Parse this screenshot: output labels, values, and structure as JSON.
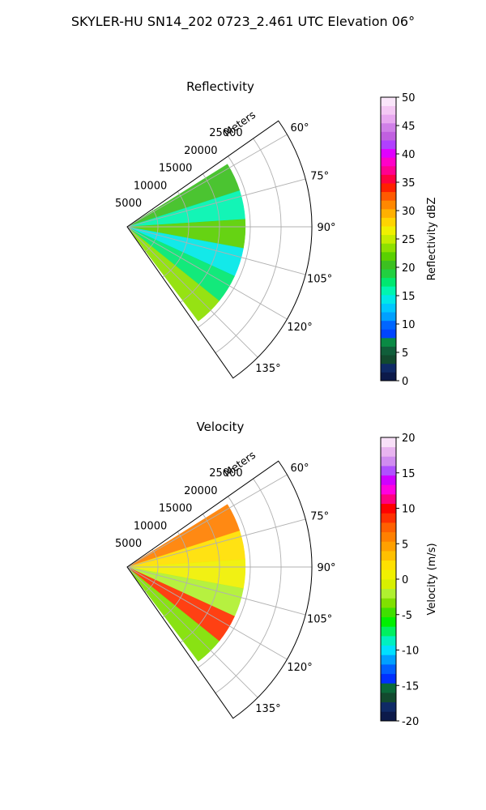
{
  "figure": {
    "title": "SKYLER-HU  SN14_202  0723_2.461 UTC Elevation 06°"
  },
  "chart_data": [
    {
      "type": "heatmap",
      "title": "Reflectivity",
      "radial_label": "Meters",
      "radial_ticks": [
        "5000",
        "10000",
        "15000",
        "20000",
        "25000"
      ],
      "radial_tick_values": [
        5000,
        10000,
        15000,
        20000,
        25000
      ],
      "angle_ticks": [
        "60°",
        "75°",
        "90°",
        "105°",
        "120°",
        "135°"
      ],
      "angle_tick_values": [
        60,
        75,
        90,
        105,
        120,
        135
      ],
      "theta_range_deg": [
        55,
        145
      ],
      "r_range_m": [
        0,
        30000
      ],
      "colorbar": {
        "label": "Reflectivity dBZ",
        "ticks": [
          "0",
          "5",
          "10",
          "15",
          "20",
          "25",
          "30",
          "35",
          "40",
          "45",
          "50"
        ],
        "range": [
          0,
          50
        ],
        "colormap": "NWSRef",
        "colors": [
          "#0c1a4a",
          "#0f2a66",
          "#124a2e",
          "#105e3a",
          "#0a8a44",
          "#0044ff",
          "#0066ff",
          "#00a0ff",
          "#00c8ff",
          "#00e8e8",
          "#00f5b0",
          "#00e870",
          "#22d040",
          "#3cc020",
          "#5ad000",
          "#8ee000",
          "#c6ec00",
          "#f0f000",
          "#ffd400",
          "#ffb000",
          "#ff8800",
          "#ff5a00",
          "#ff2000",
          "#ff0040",
          "#ff0090",
          "#ff00c8",
          "#e000ff",
          "#b040ff",
          "#c060e0",
          "#d080e8",
          "#e8a8f0",
          "#f4c8f4",
          "#fae6fa"
        ],
        "field_values": [
          20,
          16,
          22,
          14,
          18,
          24
        ]
      }
    },
    {
      "type": "heatmap",
      "title": "Velocity",
      "radial_label": "Meters",
      "radial_ticks": [
        "5000",
        "10000",
        "15000",
        "20000",
        "25000"
      ],
      "radial_tick_values": [
        5000,
        10000,
        15000,
        20000,
        25000
      ],
      "angle_ticks": [
        "60°",
        "75°",
        "90°",
        "105°",
        "120°",
        "135°"
      ],
      "angle_tick_values": [
        60,
        75,
        90,
        105,
        120,
        135
      ],
      "theta_range_deg": [
        55,
        145
      ],
      "r_range_m": [
        0,
        30000
      ],
      "colorbar": {
        "label": "Velocity (m/s)",
        "ticks": [
          "-20",
          "-15",
          "-10",
          "-5",
          "0",
          "5",
          "10",
          "15",
          "20"
        ],
        "range": [
          -20,
          20
        ],
        "colormap": "NWSVel",
        "colors": [
          "#0c1a4a",
          "#0f2a66",
          "#124a2e",
          "#0a6a3a",
          "#0030ff",
          "#0060ff",
          "#00a0ff",
          "#00e0ff",
          "#00f0c0",
          "#00f060",
          "#00f000",
          "#40e000",
          "#80e000",
          "#b0f030",
          "#d8f000",
          "#f0f000",
          "#ffe000",
          "#ffc000",
          "#ffa000",
          "#ff8000",
          "#ff6000",
          "#ff3000",
          "#ff0000",
          "#ff0080",
          "#ff00e0",
          "#d000ff",
          "#b050ff",
          "#d08cf0",
          "#e8b4f0",
          "#f8e0f8"
        ],
        "field_values": [
          6,
          2,
          0,
          -2,
          8,
          -4
        ]
      }
    }
  ]
}
